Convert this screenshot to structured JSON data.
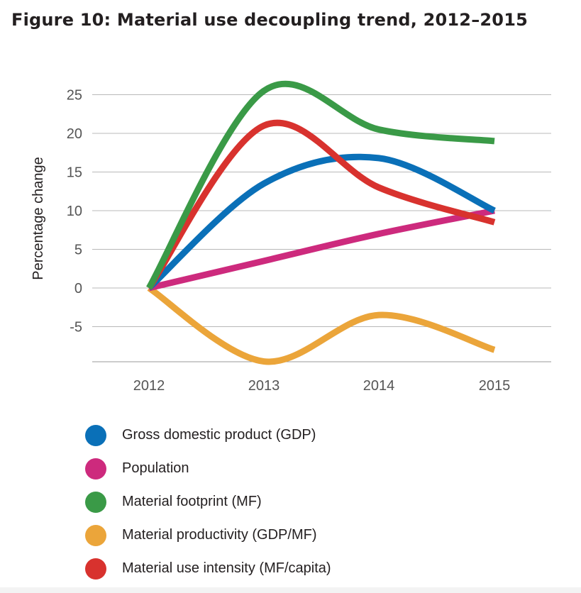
{
  "title": "Figure 10: Material use decoupling trend, 2012–2015",
  "chart_data": {
    "type": "line",
    "title": "Figure 10: Material use decoupling trend, 2012–2015",
    "xlabel": "",
    "ylabel": "Percentage change",
    "x": [
      2012,
      2013,
      2014,
      2015
    ],
    "yticks": [
      25,
      20,
      15,
      10,
      5,
      0,
      -5
    ],
    "ylim": [
      -9.5,
      25
    ],
    "grid": true,
    "legend_position": "bottom",
    "series": [
      {
        "name": "Gross domestic product (GDP)",
        "color": "#0a70b8",
        "values": [
          0,
          13.5,
          16.8,
          10
        ]
      },
      {
        "name": "Population",
        "color": "#cd2a7d",
        "values": [
          0,
          3.5,
          7,
          10
        ]
      },
      {
        "name": "Material footprint (MF)",
        "color": "#3a9a47",
        "values": [
          0,
          25.5,
          20.5,
          19
        ]
      },
      {
        "name": "Material productivity (GDP/MF)",
        "color": "#eba53a",
        "values": [
          0,
          -9.5,
          -3.5,
          -8
        ]
      },
      {
        "name": "Material use intensity (MF/capita)",
        "color": "#d8322e",
        "values": [
          0,
          21,
          13,
          8.5
        ]
      }
    ]
  }
}
